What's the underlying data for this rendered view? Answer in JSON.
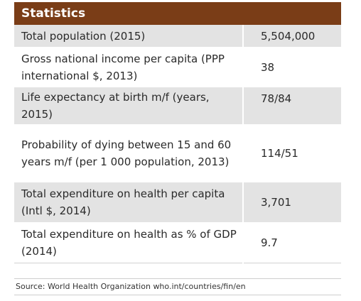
{
  "title": "Statistics",
  "rows": [
    {
      "label": "Total population (2015)",
      "value": "5,504,000"
    },
    {
      "label": "Gross national income per capita (PPP international $, 2013)",
      "value": "38"
    },
    {
      "label": "Life expectancy at birth m/f (years, 2015)",
      "value": "78/84"
    },
    {
      "label": "Probability of dying between 15 and 60 years m/f (per 1 000 population, 2013)",
      "value": "114/51"
    },
    {
      "label": "Total expenditure on health per capita (Intl $, 2014)",
      "value": "3,701"
    },
    {
      "label": "Total expenditure on health as % of GDP (2014)",
      "value": "9.7"
    }
  ],
  "source": "Source: World Health Organization who.int/countries/fin/en",
  "colors": {
    "header_bg": "#7a3d17",
    "row_shade": "#e3e3e3"
  }
}
